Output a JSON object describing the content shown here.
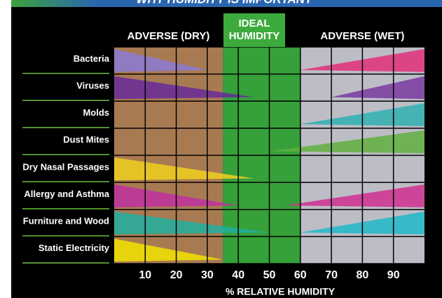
{
  "chart_data": {
    "type": "range",
    "title": "WHY HUMIDITY IS IMPORTANT",
    "x_label": "% RELATIVE HUMIDITY",
    "xlim": [
      0,
      100
    ],
    "xticks": [
      10,
      20,
      30,
      40,
      50,
      60,
      70,
      80,
      90
    ],
    "zones": [
      {
        "name": "ADVERSE (DRY)",
        "range": [
          0,
          35
        ],
        "color": "#a87a52"
      },
      {
        "name": "IDEAL HUMIDITY",
        "range": [
          35,
          60
        ],
        "color": "#36a03a"
      },
      {
        "name": "ADVERSE (WET)",
        "range": [
          60,
          100
        ],
        "color": "#bdbdc6"
      }
    ],
    "categories": [
      "Bacteria",
      "Viruses",
      "Molds",
      "Dust Mites",
      "Dry Nasal Passages",
      "Allergy and Asthma",
      "Furniture and Wood",
      "Static Electricity"
    ],
    "dry_extent": [
      30,
      45,
      null,
      null,
      45,
      40,
      50,
      35
    ],
    "wet_extent": [
      60,
      70,
      60,
      50,
      null,
      55,
      60,
      null
    ],
    "dry_colors": [
      "#8c7ad6",
      "#6a2a9a",
      null,
      null,
      "#f0d020",
      "#c030a0",
      "#20b0a0",
      "#f2e400"
    ],
    "wet_colors": [
      "#e0307a",
      "#7a3aa0",
      "#30b0b0",
      "#60b040",
      null,
      "#d03090",
      "#20b8c8",
      null
    ]
  }
}
